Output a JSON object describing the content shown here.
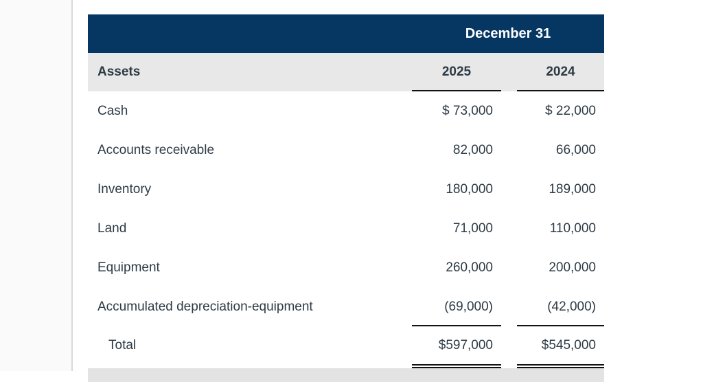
{
  "table": {
    "banner_title": "December 31",
    "columns": {
      "label_header": "Assets",
      "year_1": "2025",
      "year_2": "2024"
    },
    "rows": [
      {
        "label": "Cash",
        "v2025": "$ 73,000",
        "v2024": "$ 22,000"
      },
      {
        "label": "Accounts receivable",
        "v2025": "82,000",
        "v2024": "66,000"
      },
      {
        "label": "Inventory",
        "v2025": "180,000",
        "v2024": "189,000"
      },
      {
        "label": "Land",
        "v2025": "71,000",
        "v2024": "110,000"
      },
      {
        "label": "Equipment",
        "v2025": "260,000",
        "v2024": "200,000"
      },
      {
        "label": "Accumulated depreciation-equipment",
        "v2025": "(69,000)",
        "v2024": "(42,000)"
      }
    ],
    "total": {
      "label": "Total",
      "v2025": "$597,000",
      "v2024": "$545,000"
    }
  },
  "colors": {
    "banner_background": "#063763",
    "banner_text": "#ffffff",
    "header_row_background": "#e8e8e8",
    "body_text": "#2d3b45",
    "rule_color": "#121212",
    "gutter_background": "#fafafa",
    "gutter_border": "#d8d8d8"
  }
}
